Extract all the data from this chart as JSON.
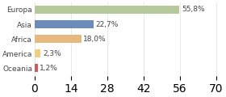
{
  "categories": [
    "Europa",
    "Asia",
    "Africa",
    "America",
    "Oceania"
  ],
  "values": [
    55.8,
    22.7,
    18.0,
    2.3,
    1.2
  ],
  "labels": [
    "55,8%",
    "22,7%",
    "18,0%",
    "2,3%",
    "1,2%"
  ],
  "bar_colors": [
    "#b5c99a",
    "#6b8cba",
    "#e8b97e",
    "#f0d080",
    "#cd5c5c"
  ],
  "background_color": "#ffffff",
  "xlim": [
    0,
    72
  ],
  "label_fontsize": 6.5,
  "tick_fontsize": 6.5,
  "bar_height": 0.55
}
